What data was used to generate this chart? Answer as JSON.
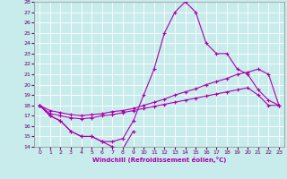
{
  "xlabel": "Windchill (Refroidissement éolien,°C)",
  "xlim": [
    -0.5,
    23.5
  ],
  "ylim": [
    14,
    28
  ],
  "yticks": [
    14,
    15,
    16,
    17,
    18,
    19,
    20,
    21,
    22,
    23,
    24,
    25,
    26,
    27,
    28
  ],
  "xticks": [
    0,
    1,
    2,
    3,
    4,
    5,
    6,
    7,
    8,
    9,
    10,
    11,
    12,
    13,
    14,
    15,
    16,
    17,
    18,
    19,
    20,
    21,
    22,
    23
  ],
  "bg_color": "#c8ecec",
  "grid_color": "#ffffff",
  "line_color": "#aa00aa",
  "line_width": 0.8,
  "marker": "+",
  "marker_size": 3,
  "marker_lw": 0.8,
  "series": [
    {
      "x": [
        0,
        1,
        2,
        3,
        4,
        5,
        6,
        7,
        8,
        9
      ],
      "y": [
        18,
        17,
        16.5,
        15.5,
        15,
        15,
        14.5,
        14,
        13.8,
        15.5
      ]
    },
    {
      "x": [
        0,
        1,
        2,
        3,
        4,
        5,
        6,
        7,
        8,
        9,
        10,
        11,
        12,
        13,
        14,
        15,
        16,
        17,
        18,
        19,
        20,
        21,
        22,
        23
      ],
      "y": [
        18,
        17,
        16.5,
        15.5,
        15,
        15,
        14.5,
        14.5,
        14.8,
        16.5,
        19,
        21.5,
        25,
        27,
        28,
        27,
        24,
        23,
        23,
        21.5,
        21,
        19.5,
        18.5,
        18
      ]
    },
    {
      "x": [
        0,
        1,
        2,
        3,
        4,
        5,
        6,
        7,
        8,
        9,
        10,
        11,
        12,
        13,
        14,
        15,
        16,
        17,
        18,
        19,
        20,
        21,
        22,
        23
      ],
      "y": [
        18,
        17.5,
        17.3,
        17.1,
        17.0,
        17.1,
        17.2,
        17.4,
        17.5,
        17.7,
        18.0,
        18.3,
        18.6,
        19.0,
        19.3,
        19.6,
        20.0,
        20.3,
        20.6,
        21.0,
        21.2,
        21.5,
        21.0,
        18.0
      ]
    },
    {
      "x": [
        0,
        1,
        2,
        3,
        4,
        5,
        6,
        7,
        8,
        9,
        10,
        11,
        12,
        13,
        14,
        15,
        16,
        17,
        18,
        19,
        20,
        21,
        22,
        23
      ],
      "y": [
        18,
        17.2,
        17.0,
        16.8,
        16.7,
        16.8,
        17.0,
        17.1,
        17.3,
        17.5,
        17.7,
        17.9,
        18.1,
        18.3,
        18.5,
        18.7,
        18.9,
        19.1,
        19.3,
        19.5,
        19.7,
        19.0,
        18.0,
        18.0
      ]
    }
  ]
}
